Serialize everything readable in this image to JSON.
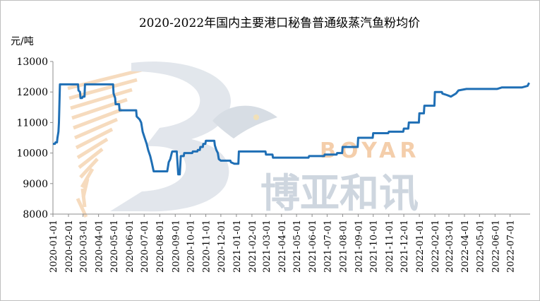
{
  "chart_data": {
    "type": "line",
    "title": "2020-2022年国内主要港口秘鲁普通级蒸汽鱼粉均价",
    "ylabel": "元/吨",
    "ylim": [
      8000,
      13000
    ],
    "yticks": [
      "8000",
      "9000",
      "10000",
      "11000",
      "12000",
      "13000"
    ],
    "xlim": [
      "2020-01-01",
      "2022-08-10"
    ],
    "xtick_labels": [
      "2020-01-01",
      "2020-02-01",
      "2020-03-01",
      "2020-04-01",
      "2020-05-01",
      "2020-06-01",
      "2020-07-01",
      "2020-08-01",
      "2020-09-01",
      "2020-10-01",
      "2020-11-01",
      "2020-12-01",
      "2021-01-01",
      "2021-02-01",
      "2021-03-01",
      "2021-04-01",
      "2021-05-01",
      "2021-06-01",
      "2021-07-01",
      "2021-08-01",
      "2021-09-01",
      "2021-10-01",
      "2021-11-01",
      "2021-12-01",
      "2022-01-01",
      "2022-02-01",
      "2022-03-01",
      "2022-04-01",
      "2022-05-01",
      "2022-06-01",
      "2022-07-01"
    ],
    "grid": false,
    "legend": "none",
    "series": [
      {
        "color": "#1f6fb5",
        "points": [
          [
            "2020-01-01",
            10300
          ],
          [
            "2020-01-05",
            10300
          ],
          [
            "2020-01-06",
            10350
          ],
          [
            "2020-01-09",
            10350
          ],
          [
            "2020-01-10",
            10500
          ],
          [
            "2020-01-12",
            10700
          ],
          [
            "2020-01-13",
            11000
          ],
          [
            "2020-01-15",
            12250
          ],
          [
            "2020-02-20",
            12250
          ],
          [
            "2020-02-21",
            12050
          ],
          [
            "2020-02-24",
            12000
          ],
          [
            "2020-02-25",
            11800
          ],
          [
            "2020-02-28",
            11800
          ],
          [
            "2020-03-01",
            11850
          ],
          [
            "2020-03-04",
            11850
          ],
          [
            "2020-03-05",
            12250
          ],
          [
            "2020-04-30",
            12250
          ],
          [
            "2020-05-01",
            11950
          ],
          [
            "2020-05-04",
            11800
          ],
          [
            "2020-05-05",
            11600
          ],
          [
            "2020-05-12",
            11600
          ],
          [
            "2020-05-13",
            11400
          ],
          [
            "2020-06-01",
            11400
          ],
          [
            "2020-06-15",
            11400
          ],
          [
            "2020-06-16",
            11200
          ],
          [
            "2020-06-22",
            11100
          ],
          [
            "2020-06-25",
            11000
          ],
          [
            "2020-06-28",
            10700
          ],
          [
            "2020-07-02",
            10500
          ],
          [
            "2020-07-06",
            10300
          ],
          [
            "2020-07-09",
            10100
          ],
          [
            "2020-07-13",
            9900
          ],
          [
            "2020-07-16",
            9700
          ],
          [
            "2020-07-20",
            9400
          ],
          [
            "2020-08-16",
            9400
          ],
          [
            "2020-08-17",
            9500
          ],
          [
            "2020-08-19",
            9700
          ],
          [
            "2020-08-22",
            9800
          ],
          [
            "2020-08-25",
            10000
          ],
          [
            "2020-08-26",
            10050
          ],
          [
            "2020-09-04",
            10050
          ],
          [
            "2020-09-05",
            9800
          ],
          [
            "2020-09-07",
            9300
          ],
          [
            "2020-09-10",
            9300
          ],
          [
            "2020-09-12",
            9900
          ],
          [
            "2020-09-18",
            9900
          ],
          [
            "2020-09-19",
            10000
          ],
          [
            "2020-10-05",
            10000
          ],
          [
            "2020-10-06",
            10050
          ],
          [
            "2020-10-15",
            10050
          ],
          [
            "2020-10-16",
            10100
          ],
          [
            "2020-10-20",
            10100
          ],
          [
            "2020-10-21",
            10200
          ],
          [
            "2020-10-26",
            10200
          ],
          [
            "2020-10-27",
            10300
          ],
          [
            "2020-10-31",
            10300
          ],
          [
            "2020-11-01",
            10400
          ],
          [
            "2020-11-18",
            10400
          ],
          [
            "2020-11-19",
            10250
          ],
          [
            "2020-11-22",
            10100
          ],
          [
            "2020-11-25",
            10000
          ],
          [
            "2020-11-27",
            9800
          ],
          [
            "2020-12-01",
            9750
          ],
          [
            "2020-12-20",
            9750
          ],
          [
            "2020-12-21",
            9700
          ],
          [
            "2020-12-28",
            9650
          ],
          [
            "2021-01-05",
            9650
          ],
          [
            "2021-01-06",
            10050
          ],
          [
            "2021-02-28",
            10050
          ],
          [
            "2021-03-01",
            9950
          ],
          [
            "2021-03-14",
            9950
          ],
          [
            "2021-03-15",
            9850
          ],
          [
            "2021-04-30",
            9850
          ],
          [
            "2021-05-01",
            9850
          ],
          [
            "2021-05-25",
            9850
          ],
          [
            "2021-05-26",
            9900
          ],
          [
            "2021-06-25",
            9900
          ],
          [
            "2021-06-26",
            9950
          ],
          [
            "2021-07-20",
            9950
          ],
          [
            "2021-07-21",
            10000
          ],
          [
            "2021-07-31",
            10000
          ],
          [
            "2021-08-01",
            10200
          ],
          [
            "2021-08-31",
            10200
          ],
          [
            "2021-09-01",
            10500
          ],
          [
            "2021-09-30",
            10500
          ],
          [
            "2021-10-01",
            10650
          ],
          [
            "2021-10-31",
            10650
          ],
          [
            "2021-11-01",
            10700
          ],
          [
            "2021-11-30",
            10700
          ],
          [
            "2021-12-01",
            10800
          ],
          [
            "2021-12-10",
            10800
          ],
          [
            "2021-12-11",
            11000
          ],
          [
            "2021-12-31",
            11000
          ],
          [
            "2022-01-01",
            11300
          ],
          [
            "2022-01-10",
            11300
          ],
          [
            "2022-01-11",
            11550
          ],
          [
            "2022-01-31",
            11550
          ],
          [
            "2022-02-01",
            12000
          ],
          [
            "2022-02-15",
            12000
          ],
          [
            "2022-02-16",
            11950
          ],
          [
            "2022-02-25",
            11900
          ],
          [
            "2022-03-05",
            11850
          ],
          [
            "2022-03-15",
            11950
          ],
          [
            "2022-03-20",
            12050
          ],
          [
            "2022-04-05",
            12100
          ],
          [
            "2022-04-20",
            12100
          ],
          [
            "2022-05-05",
            12100
          ],
          [
            "2022-05-25",
            12100
          ],
          [
            "2022-06-05",
            12100
          ],
          [
            "2022-06-15",
            12150
          ],
          [
            "2022-07-01",
            12150
          ],
          [
            "2022-07-25",
            12150
          ],
          [
            "2022-08-05",
            12200
          ],
          [
            "2022-08-08",
            12300
          ]
        ]
      }
    ]
  },
  "watermark": {
    "en": "BOYAR",
    "cn": "博亚和讯"
  }
}
